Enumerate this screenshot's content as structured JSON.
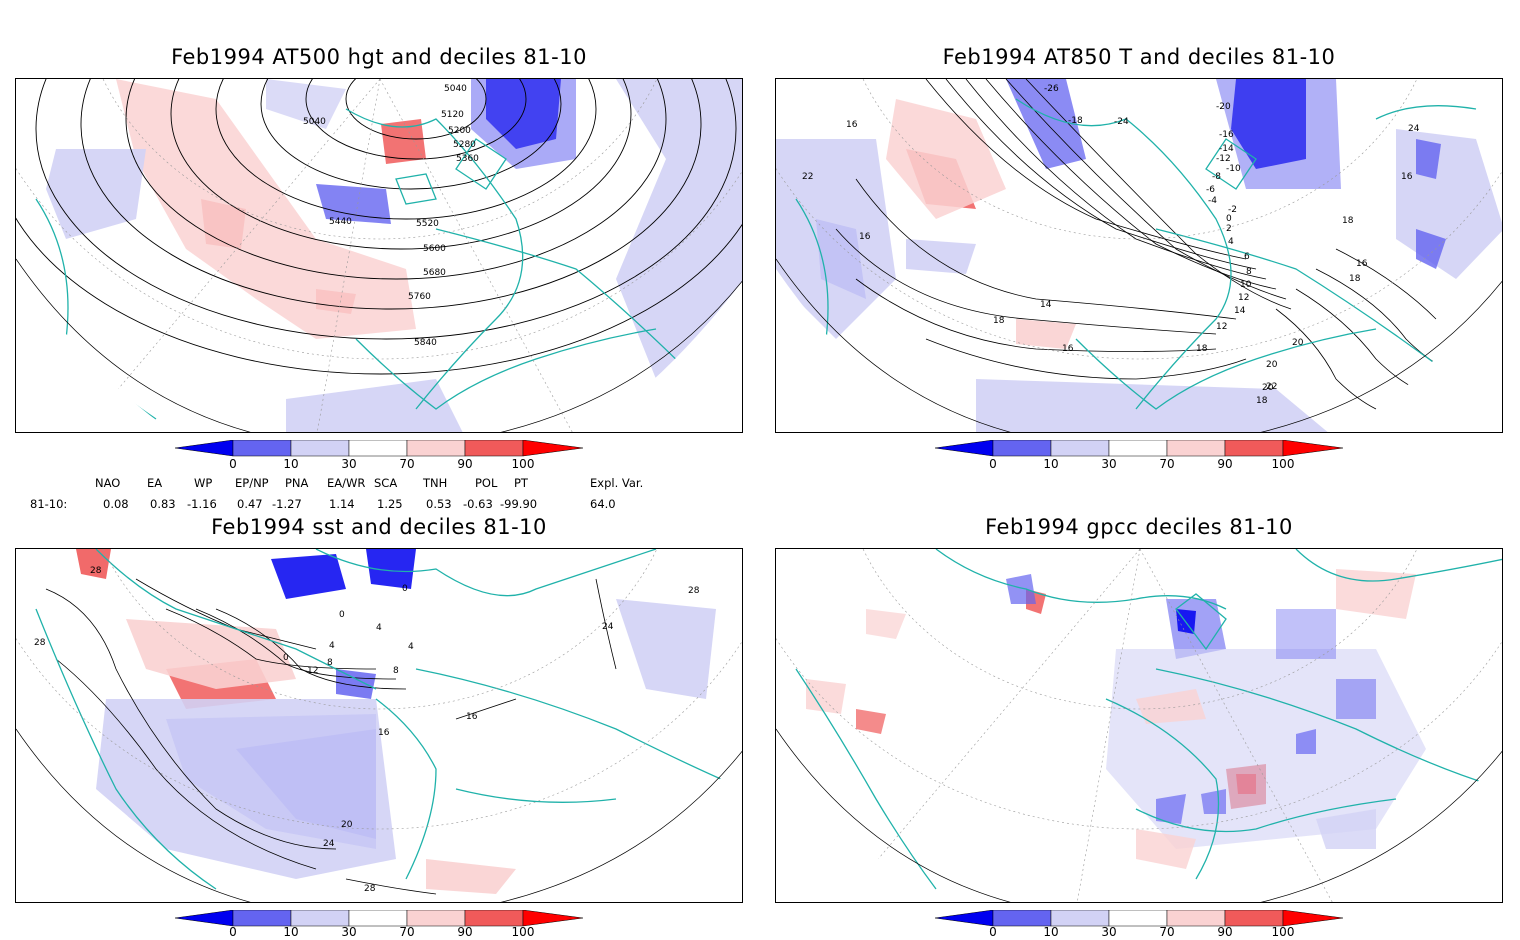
{
  "panels": {
    "z500": {
      "title": "Feb1994 AT500 hgt and deciles 81-10",
      "contour_labels": [
        "5040",
        "5040",
        "5120",
        "5200",
        "5280",
        "5360",
        "5440",
        "5520",
        "5600",
        "5680",
        "5760",
        "5840"
      ]
    },
    "t850": {
      "title": "Feb1994 AT850 T and deciles 81-10",
      "contour_labels": [
        "-26",
        "-24",
        "-20",
        "-18",
        "-16",
        "-14",
        "-12",
        "-10",
        "-8",
        "-6",
        "-4",
        "-2",
        "0",
        "2",
        "4",
        "6",
        "8",
        "10",
        "12",
        "14",
        "16",
        "18",
        "20",
        "22",
        "24",
        "16",
        "16",
        "16",
        "18",
        "18",
        "14",
        "12",
        "16",
        "18",
        "20",
        "22",
        "20",
        "18"
      ]
    },
    "sst": {
      "title": "Feb1994 sst and deciles 81-10",
      "contour_labels": [
        "28",
        "28",
        "28",
        "24",
        "24",
        "20",
        "16",
        "16",
        "12",
        "8",
        "4",
        "0",
        "0",
        "4",
        "8",
        "0",
        "4",
        "28"
      ]
    },
    "gpcc": {
      "title": "Feb1994 gpcc deciles 81-10",
      "contour_labels": []
    }
  },
  "colorbar": {
    "ticks": [
      "0",
      "10",
      "30",
      "70",
      "90",
      "100"
    ],
    "colors": [
      "#0000f0",
      "#6464f0",
      "#d2d2f5",
      "#ffffff",
      "#fad2d2",
      "#f05a5a",
      "#ff0000"
    ]
  },
  "indices": {
    "headers": [
      "NAO",
      "EA",
      "WP",
      "EP/NP",
      "PNA",
      "EA/WR",
      "SCA",
      "TNH",
      "POL",
      "PT",
      "Expl. Var."
    ],
    "row_label": "81-10:",
    "values": [
      "0.08",
      "0.83",
      "-1.16",
      "0.47",
      "-1.27",
      "1.14",
      "1.25",
      "0.53",
      "-0.63",
      "-99.90",
      "64.0"
    ]
  }
}
